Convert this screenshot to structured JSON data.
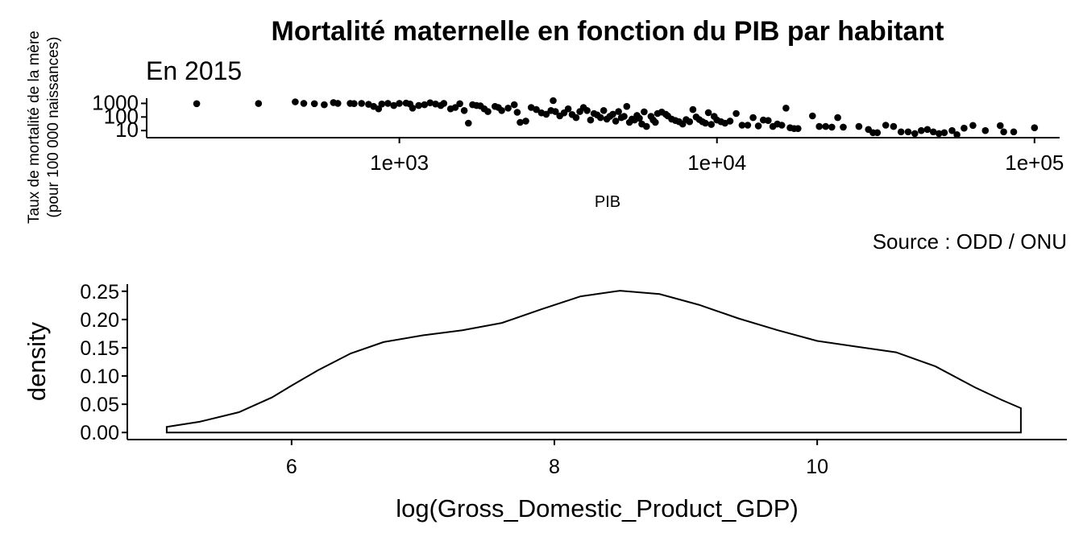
{
  "chart_data": [
    {
      "type": "scatter",
      "title": "Mortalité maternelle en fonction du PIB par habitant",
      "subtitle": "En 2015",
      "caption": "Source : ODD / ONU",
      "xlabel": "PIB",
      "ylabel_lines": [
        "Taux de mortalité de la mère",
        "(pour 100 000 naissances)"
      ],
      "x_scale": "log10",
      "y_scale": "log10",
      "xlim": [
        160,
        120000
      ],
      "ylim": [
        3,
        1600
      ],
      "x_ticks": [
        1000,
        10000,
        100000
      ],
      "x_tick_labels": [
        "1e+03",
        "1e+04",
        "1e+05"
      ],
      "y_ticks": [
        1000,
        100,
        10
      ],
      "y_tick_labels": [
        "1000",
        "100",
        "10"
      ],
      "grid": false,
      "points": [
        [
          230,
          950
        ],
        [
          360,
          980
        ],
        [
          470,
          1300
        ],
        [
          500,
          1000
        ],
        [
          540,
          950
        ],
        [
          580,
          800
        ],
        [
          620,
          1150
        ],
        [
          640,
          1000
        ],
        [
          700,
          1000
        ],
        [
          720,
          960
        ],
        [
          760,
          1000
        ],
        [
          800,
          850
        ],
        [
          830,
          600
        ],
        [
          860,
          400
        ],
        [
          880,
          900
        ],
        [
          920,
          1000
        ],
        [
          960,
          700
        ],
        [
          1000,
          1000
        ],
        [
          1050,
          1050
        ],
        [
          1080,
          900
        ],
        [
          1100,
          450
        ],
        [
          1150,
          700
        ],
        [
          1200,
          800
        ],
        [
          1250,
          1100
        ],
        [
          1300,
          900
        ],
        [
          1350,
          700
        ],
        [
          1380,
          1000
        ],
        [
          1450,
          400
        ],
        [
          1500,
          500
        ],
        [
          1550,
          950
        ],
        [
          1600,
          300
        ],
        [
          1650,
          35
        ],
        [
          1700,
          800
        ],
        [
          1750,
          700
        ],
        [
          1800,
          650
        ],
        [
          1850,
          400
        ],
        [
          1900,
          250
        ],
        [
          2000,
          600
        ],
        [
          2050,
          500
        ],
        [
          2100,
          300
        ],
        [
          2200,
          450
        ],
        [
          2300,
          800
        ],
        [
          2350,
          220
        ],
        [
          2400,
          40
        ],
        [
          2500,
          50
        ],
        [
          2600,
          500
        ],
        [
          2700,
          350
        ],
        [
          2800,
          200
        ],
        [
          2900,
          160
        ],
        [
          3000,
          300
        ],
        [
          3050,
          1600
        ],
        [
          3100,
          250
        ],
        [
          3200,
          120
        ],
        [
          3300,
          200
        ],
        [
          3400,
          400
        ],
        [
          3500,
          150
        ],
        [
          3600,
          90
        ],
        [
          3700,
          250
        ],
        [
          3800,
          500
        ],
        [
          3900,
          300
        ],
        [
          4000,
          60
        ],
        [
          4100,
          180
        ],
        [
          4200,
          140
        ],
        [
          4300,
          90
        ],
        [
          4400,
          300
        ],
        [
          4500,
          70
        ],
        [
          4600,
          110
        ],
        [
          4700,
          160
        ],
        [
          4800,
          50
        ],
        [
          4900,
          250
        ],
        [
          5000,
          90
        ],
        [
          5100,
          110
        ],
        [
          5200,
          600
        ],
        [
          5300,
          40
        ],
        [
          5400,
          70
        ],
        [
          5500,
          60
        ],
        [
          5600,
          130
        ],
        [
          5700,
          80
        ],
        [
          5800,
          30
        ],
        [
          5900,
          240
        ],
        [
          6000,
          20
        ],
        [
          6200,
          110
        ],
        [
          6300,
          60
        ],
        [
          6400,
          40
        ],
        [
          6500,
          180
        ],
        [
          6700,
          230
        ],
        [
          6900,
          160
        ],
        [
          7000,
          120
        ],
        [
          7200,
          70
        ],
        [
          7400,
          55
        ],
        [
          7600,
          45
        ],
        [
          7800,
          30
        ],
        [
          8000,
          65
        ],
        [
          8200,
          45
        ],
        [
          8400,
          350
        ],
        [
          8600,
          100
        ],
        [
          8800,
          65
        ],
        [
          9000,
          45
        ],
        [
          9200,
          35
        ],
        [
          9400,
          210
        ],
        [
          9600,
          28
        ],
        [
          9800,
          110
        ],
        [
          10000,
          60
        ],
        [
          10300,
          45
        ],
        [
          10600,
          35
        ],
        [
          11000,
          50
        ],
        [
          11500,
          180
        ],
        [
          12000,
          25
        ],
        [
          12500,
          25
        ],
        [
          13000,
          90
        ],
        [
          13500,
          22
        ],
        [
          14000,
          60
        ],
        [
          14500,
          55
        ],
        [
          15000,
          20
        ],
        [
          15500,
          30
        ],
        [
          16000,
          25
        ],
        [
          16500,
          450
        ],
        [
          17000,
          16
        ],
        [
          17500,
          14
        ],
        [
          18000,
          14
        ],
        [
          20000,
          120
        ],
        [
          21000,
          20
        ],
        [
          22000,
          20
        ],
        [
          23000,
          18
        ],
        [
          24000,
          90
        ],
        [
          25000,
          18
        ],
        [
          28000,
          20
        ],
        [
          30000,
          12
        ],
        [
          31000,
          7
        ],
        [
          32000,
          7
        ],
        [
          34000,
          25
        ],
        [
          36000,
          20
        ],
        [
          38000,
          8
        ],
        [
          40000,
          8
        ],
        [
          42000,
          6
        ],
        [
          44000,
          10
        ],
        [
          46000,
          12
        ],
        [
          48000,
          8
        ],
        [
          50000,
          6
        ],
        [
          52000,
          7
        ],
        [
          55000,
          10
        ],
        [
          57000,
          5
        ],
        [
          60000,
          15
        ],
        [
          64000,
          24
        ],
        [
          70000,
          10
        ],
        [
          78000,
          23
        ],
        [
          80000,
          8
        ],
        [
          86000,
          8
        ],
        [
          100000,
          16
        ]
      ]
    },
    {
      "type": "area",
      "ylabel": "density",
      "xlabel": "log(Gross_Domestic_Product_GDP)",
      "xlim": [
        4.75,
        11.9
      ],
      "ylim": [
        -0.0125,
        0.2625
      ],
      "x_ticks": [
        6,
        8,
        10
      ],
      "x_tick_labels": [
        "6",
        "8",
        "10"
      ],
      "y_ticks": [
        0,
        0.05,
        0.1,
        0.15,
        0.2,
        0.25
      ],
      "y_tick_labels": [
        "0.00",
        "0.05",
        "0.10",
        "0.15",
        "0.20",
        "0.25"
      ],
      "grid": false,
      "x": [
        5.05,
        5.3,
        5.6,
        5.85,
        6.0,
        6.2,
        6.45,
        6.7,
        7.0,
        7.3,
        7.6,
        7.9,
        8.2,
        8.5,
        8.8,
        9.1,
        9.4,
        9.7,
        10.0,
        10.3,
        10.6,
        10.9,
        11.2,
        11.4,
        11.55
      ],
      "density": [
        0.01,
        0.019,
        0.036,
        0.062,
        0.083,
        0.11,
        0.14,
        0.16,
        0.172,
        0.181,
        0.194,
        0.218,
        0.241,
        0.251,
        0.245,
        0.226,
        0.202,
        0.181,
        0.162,
        0.152,
        0.142,
        0.117,
        0.08,
        0.058,
        0.043
      ]
    }
  ]
}
